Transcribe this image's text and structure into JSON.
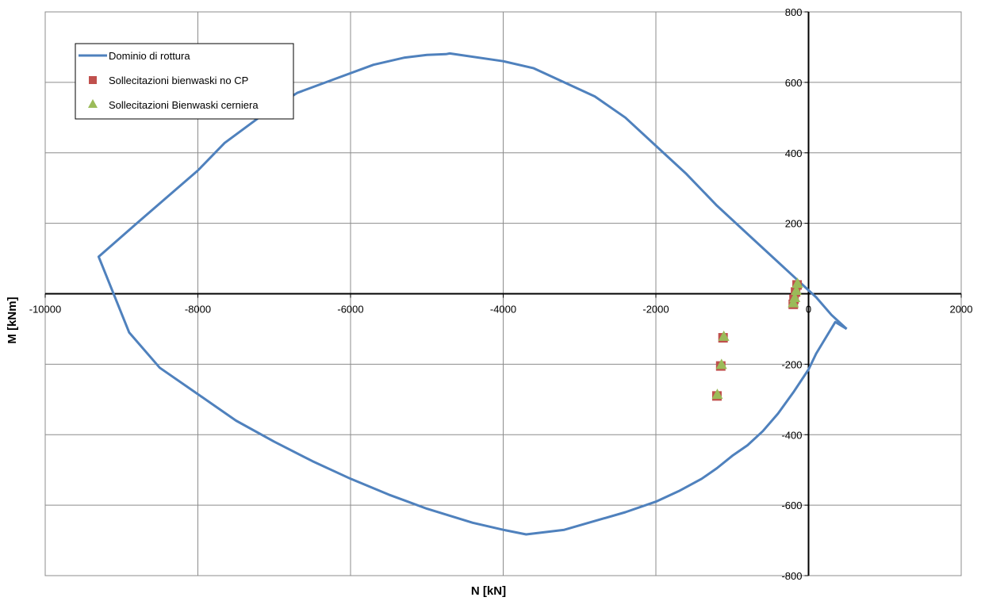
{
  "chart_data": {
    "type": "scatter",
    "title": "",
    "xlabel": "N [kN]",
    "ylabel": "M [kNm]",
    "xlim": [
      -10000,
      2000
    ],
    "ylim": [
      -800,
      800
    ],
    "xticks": [
      -10000,
      -8000,
      -6000,
      -4000,
      -2000,
      0,
      2000
    ],
    "yticks": [
      -800,
      -600,
      -400,
      -200,
      200,
      400,
      600,
      800
    ],
    "grid": true,
    "legend_position": "top-left",
    "series": [
      {
        "name": "Dominio di rottura",
        "kind": "line",
        "color": "#4f81bd",
        "points": [
          [
            500,
            -100
          ],
          [
            350,
            -80
          ],
          [
            100,
            -170
          ],
          [
            0,
            -215
          ],
          [
            -200,
            -280
          ],
          [
            -400,
            -340
          ],
          [
            -600,
            -390
          ],
          [
            -800,
            -430
          ],
          [
            -1000,
            -460
          ],
          [
            -1200,
            -495
          ],
          [
            -1400,
            -525
          ],
          [
            -1700,
            -560
          ],
          [
            -2000,
            -590
          ],
          [
            -2400,
            -620
          ],
          [
            -2800,
            -645
          ],
          [
            -3200,
            -670
          ],
          [
            -3700,
            -683
          ],
          [
            -4000,
            -670
          ],
          [
            -4400,
            -650
          ],
          [
            -5000,
            -610
          ],
          [
            -5500,
            -570
          ],
          [
            -6000,
            -525
          ],
          [
            -6500,
            -475
          ],
          [
            -7000,
            -420
          ],
          [
            -7500,
            -360
          ],
          [
            -8000,
            -285
          ],
          [
            -8500,
            -210
          ],
          [
            -8900,
            -110
          ],
          [
            -9300,
            105
          ],
          [
            -8800,
            200
          ],
          [
            -8000,
            350
          ],
          [
            -7650,
            428
          ],
          [
            -7200,
            500
          ],
          [
            -6700,
            570
          ],
          [
            -6200,
            610
          ],
          [
            -5700,
            650
          ],
          [
            -5300,
            670
          ],
          [
            -5000,
            678
          ],
          [
            -4750,
            680
          ],
          [
            -4700,
            682
          ],
          [
            -4000,
            660
          ],
          [
            -3600,
            640
          ],
          [
            -3200,
            600
          ],
          [
            -2800,
            560
          ],
          [
            -2400,
            500
          ],
          [
            -2000,
            420
          ],
          [
            -1600,
            340
          ],
          [
            -1200,
            250
          ],
          [
            -800,
            170
          ],
          [
            -400,
            90
          ],
          [
            -200,
            50
          ],
          [
            0,
            10
          ],
          [
            100,
            -10
          ],
          [
            300,
            -60
          ],
          [
            500,
            -100
          ]
        ]
      },
      {
        "name": "Sollecitazioni bienwaski no CP",
        "kind": "marker",
        "marker": "square",
        "color": "#c0504d",
        "points": [
          [
            -150,
            25
          ],
          [
            -170,
            5
          ],
          [
            -190,
            -15
          ],
          [
            -200,
            -30
          ],
          [
            -1120,
            -125
          ],
          [
            -1150,
            -205
          ],
          [
            -1200,
            -290
          ]
        ]
      },
      {
        "name": "Sollecitazioni Bienwaski cerniera",
        "kind": "marker",
        "marker": "triangle",
        "color": "#9bbb59",
        "points": [
          [
            -145,
            30
          ],
          [
            -160,
            10
          ],
          [
            -180,
            -10
          ],
          [
            -200,
            -25
          ],
          [
            -1110,
            -120
          ],
          [
            -1140,
            -200
          ],
          [
            -1195,
            -285
          ]
        ]
      }
    ]
  }
}
